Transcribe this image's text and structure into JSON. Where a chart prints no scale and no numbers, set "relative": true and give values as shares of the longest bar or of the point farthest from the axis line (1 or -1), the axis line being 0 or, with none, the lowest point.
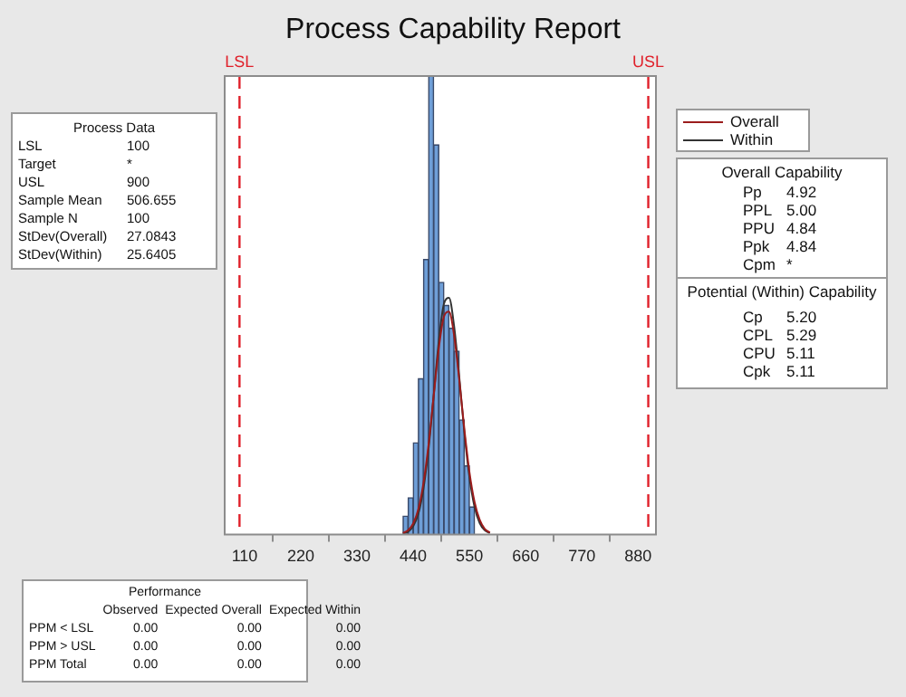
{
  "chart_data": {
    "type": "histogram",
    "title": "Process Capability Report",
    "relative": true,
    "bins": [
      420,
      430,
      440,
      450,
      460,
      470,
      480,
      490,
      500,
      510,
      520,
      530,
      540,
      550,
      560
    ],
    "values": [
      0.04,
      0.08,
      0.2,
      0.34,
      0.6,
      1.0,
      0.85,
      0.55,
      0.5,
      0.45,
      0.4,
      0.25,
      0.15,
      0.06
    ],
    "color": "#6f9fd8",
    "series": [
      {
        "name": "Overall",
        "type": "line",
        "color": "#9b1c1c",
        "x": [
          420,
          430,
          440,
          450,
          460,
          470,
          480,
          490,
          500,
          510,
          520,
          530,
          540,
          550,
          560,
          570,
          580,
          590
        ],
        "values": [
          0.003,
          0.009,
          0.024,
          0.055,
          0.112,
          0.196,
          0.302,
          0.406,
          0.475,
          0.486,
          0.434,
          0.338,
          0.23,
          0.136,
          0.071,
          0.032,
          0.012,
          0.004
        ]
      },
      {
        "name": "Within",
        "type": "line",
        "color": "#333333",
        "x": [
          420,
          430,
          440,
          450,
          460,
          470,
          480,
          490,
          500,
          510,
          520,
          530,
          540,
          550,
          560,
          570,
          580,
          590
        ],
        "values": [
          0.002,
          0.006,
          0.018,
          0.045,
          0.1,
          0.187,
          0.303,
          0.421,
          0.503,
          0.516,
          0.454,
          0.344,
          0.223,
          0.125,
          0.06,
          0.025,
          0.009,
          0.003
        ]
      }
    ],
    "xlim": [
      71,
      915
    ],
    "xticks": [
      110,
      220,
      330,
      440,
      550,
      660,
      770,
      880
    ],
    "grid": false,
    "legend": "top right",
    "marker": "none",
    "ref_lines": [
      {
        "axis": "x",
        "value": 100,
        "label": "LSL",
        "color": "#e0202a",
        "line_style": "dashed"
      },
      {
        "axis": "x",
        "value": 900,
        "label": "USL",
        "color": "#e0202a",
        "line_style": "dashed"
      }
    ],
    "annotations": [
      "Process Data",
      "LSL\t100",
      "Target\t*",
      "USL\t900",
      "Sample Mean\t506.655",
      "Sample N\t100",
      "StDev(Overall)\t27.0843",
      "StDev(Within)\t25.6405",
      "Overall Capability",
      "Pp\t4.92",
      "PPL\t5.00",
      "PPU\t4.84",
      "Ppk\t4.84",
      "Cpm\t*",
      "Potential (Within) Capability",
      "Cp\t5.20",
      "CPL\t5.29",
      "CPU\t5.11",
      "Cpk\t5.11",
      "Performance",
      "\tObserved\tExpected Overall\tExpected Within",
      "PPM < LSL\t0.00\t0.00\t0.00",
      "PPM > USL\t0.00\t0.00\t0.00",
      "PPM Total\t0.00\t0.00\t0.00"
    ]
  }
}
